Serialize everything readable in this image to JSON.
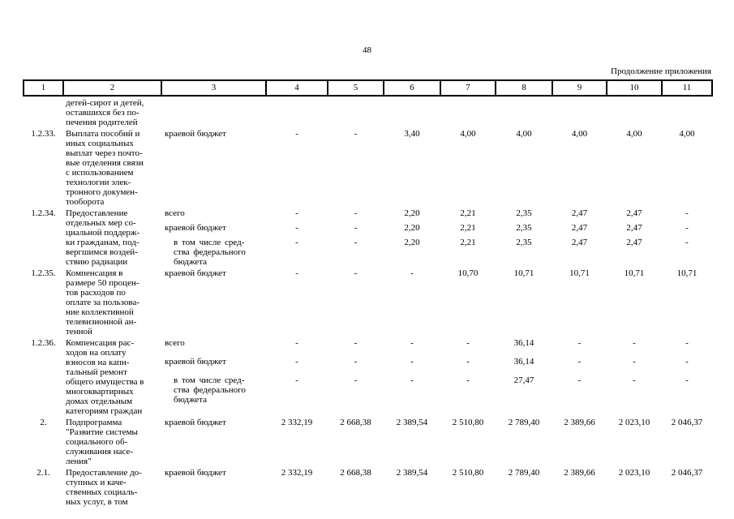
{
  "page": {
    "number": "48",
    "continuation_label": "Продолжение приложения"
  },
  "colors": {
    "text": "#000000",
    "background": "#ffffff"
  },
  "table": {
    "header_cols": [
      "1",
      "2",
      "3",
      "4",
      "5",
      "6",
      "7",
      "8",
      "9",
      "10",
      "11"
    ],
    "rows": [
      {
        "num": "",
        "name": "детей-сирот и детей,\nоставшихся без по-\nпечения родителей",
        "budgets": []
      },
      {
        "num": "1.2.33.",
        "name": "Выплата пособий и\nиных социальных\nвыплат через почто-\nвые отделения связи\nс использованием\nтехнологии элек-\nтронного докумен-\nтооборота",
        "budgets": [
          {
            "label": "краевой бюджет",
            "indent": false,
            "values": [
              "-",
              "-",
              "3,40",
              "4,00",
              "4,00",
              "4,00",
              "4,00",
              "4,00"
            ]
          }
        ]
      },
      {
        "num": "1.2.34.",
        "name": "Предоставление\nотдельных мер со-\nциальной поддерж-\nки гражданам, под-\nвергшимся воздей-\nствию радиации",
        "budgets": [
          {
            "label": "всего",
            "indent": false,
            "values": [
              "-",
              "-",
              "2,20",
              "2,21",
              "2,35",
              "2,47",
              "2,47",
              "-"
            ]
          },
          {
            "label": "краевой бюджет",
            "indent": false,
            "values": [
              "-",
              "-",
              "2,20",
              "2,21",
              "2,35",
              "2,47",
              "2,47",
              "-"
            ]
          },
          {
            "label": "в том числе сред-\nства федерального\nбюджета",
            "indent": true,
            "values": [
              "-",
              "-",
              "2,20",
              "2,21",
              "2,35",
              "2,47",
              "2,47",
              "-"
            ]
          }
        ]
      },
      {
        "num": "1.2.35.",
        "name": "Компенсация в\nразмере 50 процен-\nтов расходов по\nоплате за пользова-\nние коллективной\nтелевизионной ан-\nтенной",
        "budgets": [
          {
            "label": "краевой бюджет",
            "indent": false,
            "values": [
              "-",
              "-",
              "-",
              "10,70",
              "10,71",
              "10,71",
              "10,71",
              "10,71"
            ]
          }
        ]
      },
      {
        "num": "1.2.36.",
        "name": "Компенсация рас-\nходов на оплату\nвзносов на капи-\nтальный ремонт\nобщего имущества в\nмногоквартирных\nдомах отдельным\nкатегориям граждан",
        "budgets": [
          {
            "label": "всего",
            "indent": false,
            "values": [
              "-",
              "-",
              "-",
              "-",
              "36,14",
              "-",
              "-",
              "-"
            ]
          },
          {
            "label": "краевой бюджет",
            "indent": false,
            "values": [
              "-",
              "-",
              "-",
              "-",
              "36,14",
              "-",
              "-",
              "-"
            ]
          },
          {
            "label": "в том числе сред-\nства федерального\nбюджета",
            "indent": true,
            "values": [
              "-",
              "-",
              "-",
              "-",
              "27,47",
              "-",
              "-",
              "-"
            ]
          }
        ]
      },
      {
        "num": "2.",
        "name": "Подпрограмма\n\"Развитие системы\nсоциального об-\nслуживания насе-\nления\"",
        "budgets": [
          {
            "label": "краевой бюджет",
            "indent": false,
            "values": [
              "2 332,19",
              "2 668,38",
              "2 389,54",
              "2 510,80",
              "2 789,40",
              "2 389,66",
              "2 023,10",
              "2 046,37"
            ]
          }
        ]
      },
      {
        "num": "2.1.",
        "name": "Предоставление до-\nступных и каче-\nственных социаль-\nных услуг, в том",
        "budgets": [
          {
            "label": "краевой бюджет",
            "indent": false,
            "values": [
              "2 332,19",
              "2 668,38",
              "2 389,54",
              "2 510,80",
              "2 789,40",
              "2 389,66",
              "2 023,10",
              "2 046,37"
            ]
          }
        ]
      }
    ]
  }
}
